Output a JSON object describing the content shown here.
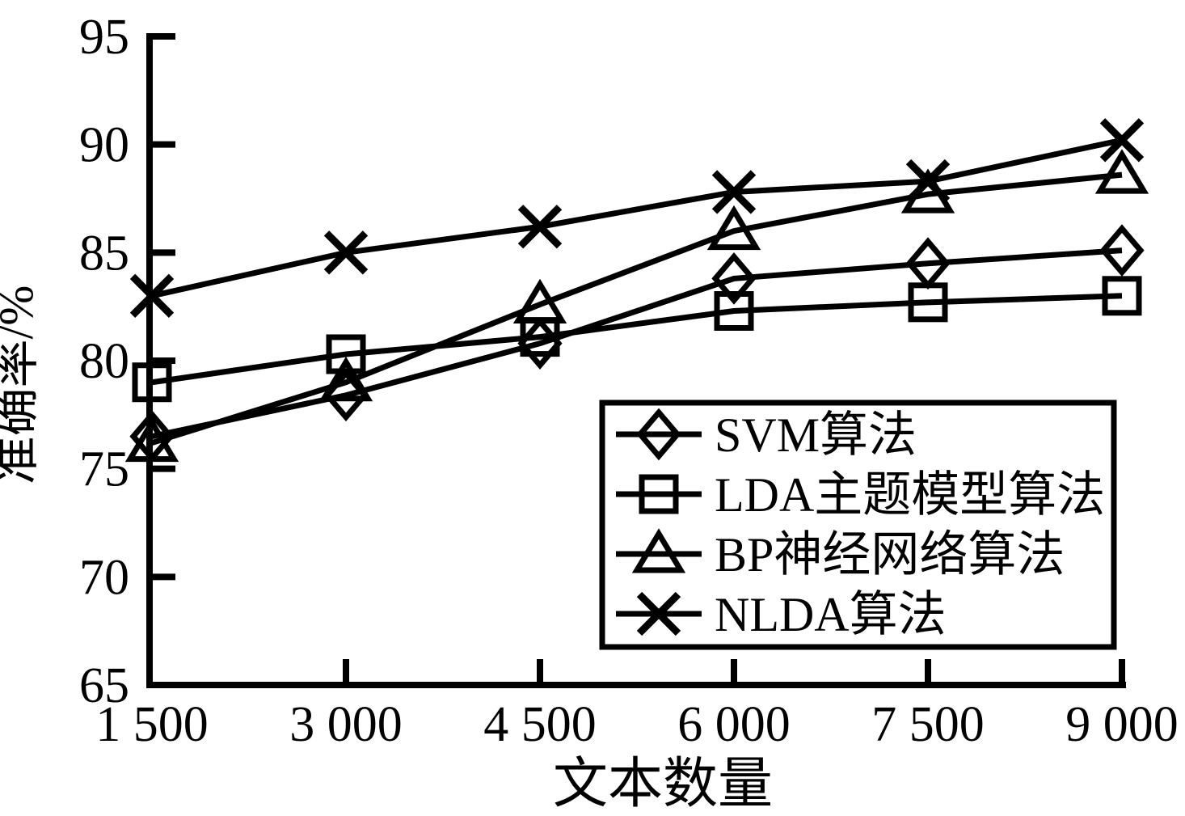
{
  "figure": {
    "background_color": "#ffffff",
    "ink_color": "#000000"
  },
  "chart_data": {
    "type": "line",
    "title": "",
    "xlabel": "文本数量",
    "ylabel": "准确率/%",
    "x": [
      1500,
      3000,
      4500,
      6000,
      7500,
      9000
    ],
    "x_tick_labels": [
      "1 500",
      "3 000",
      "4 500",
      "6 000",
      "7 500",
      "9 000"
    ],
    "xlim": [
      1500,
      9000
    ],
    "yticks": [
      65,
      70,
      75,
      80,
      85,
      90,
      95
    ],
    "y_tick_labels": [
      "65",
      "70",
      "75",
      "80",
      "85",
      "90",
      "95"
    ],
    "ylim": [
      65,
      95
    ],
    "grid": false,
    "legend_position": "inside lower-right",
    "series": [
      {
        "key": "svm",
        "name": "SVM算法",
        "marker": "diamond",
        "marker_icon": "diamond-icon",
        "values": [
          76.5,
          78.4,
          80.8,
          83.8,
          84.5,
          85.1
        ]
      },
      {
        "key": "lda",
        "name": "LDA主题模型算法",
        "marker": "square",
        "marker_icon": "square-icon",
        "values": [
          79.0,
          80.3,
          81.1,
          82.3,
          82.7,
          83.0
        ]
      },
      {
        "key": "bp",
        "name": "BP神经网络算法",
        "marker": "triangle",
        "marker_icon": "triangle-icon",
        "values": [
          76.2,
          79.0,
          82.6,
          86.0,
          87.7,
          88.6
        ]
      },
      {
        "key": "nlda",
        "name": "NLDA算法",
        "marker": "x",
        "marker_icon": "x-icon",
        "values": [
          83.0,
          85.0,
          86.2,
          87.8,
          88.3,
          90.2
        ]
      }
    ]
  }
}
